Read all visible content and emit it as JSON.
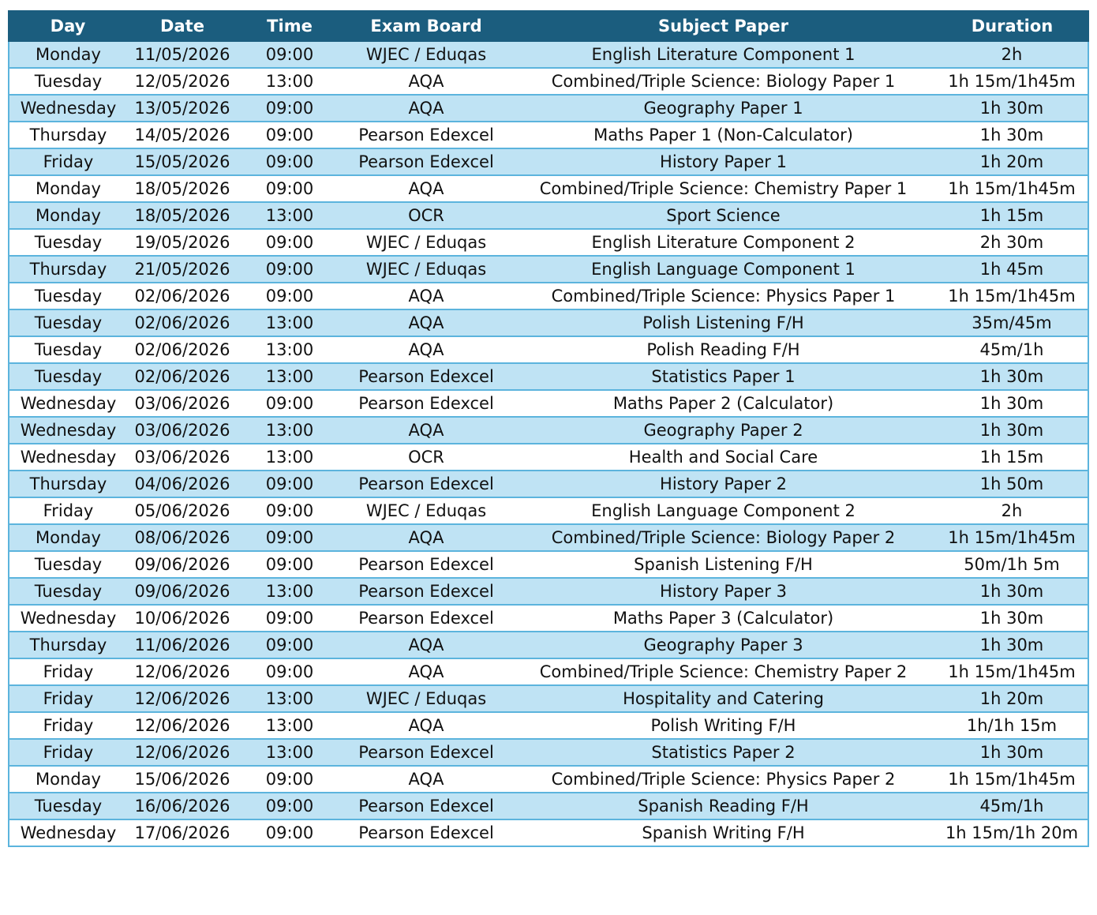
{
  "table": {
    "header": [
      "Day",
      "Date",
      "Time",
      "Exam Board",
      "Subject Paper",
      "Duration"
    ],
    "rows": [
      [
        "Monday",
        "11/05/2026",
        "09:00",
        "WJEC / Eduqas",
        "English Literature Component 1",
        "2h"
      ],
      [
        "Tuesday",
        "12/05/2026",
        "13:00",
        "AQA",
        "Combined/Triple Science: Biology Paper 1",
        "1h 15m/1h45m"
      ],
      [
        "Wednesday",
        "13/05/2026",
        "09:00",
        "AQA",
        "Geography Paper 1",
        "1h 30m"
      ],
      [
        "Thursday",
        "14/05/2026",
        "09:00",
        "Pearson Edexcel",
        "Maths Paper 1 (Non-Calculator)",
        "1h 30m"
      ],
      [
        "Friday",
        "15/05/2026",
        "09:00",
        "Pearson Edexcel",
        "History Paper 1",
        "1h 20m"
      ],
      [
        "Monday",
        "18/05/2026",
        "09:00",
        "AQA",
        "Combined/Triple Science: Chemistry Paper 1",
        "1h 15m/1h45m"
      ],
      [
        "Monday",
        "18/05/2026",
        "13:00",
        "OCR",
        "Sport Science",
        "1h 15m"
      ],
      [
        "Tuesday",
        "19/05/2026",
        "09:00",
        "WJEC / Eduqas",
        "English Literature Component 2",
        "2h 30m"
      ],
      [
        "Thursday",
        "21/05/2026",
        "09:00",
        "WJEC / Eduqas",
        "English Language Component 1",
        "1h 45m"
      ],
      [
        "Tuesday",
        "02/06/2026",
        "09:00",
        "AQA",
        "Combined/Triple Science: Physics Paper 1",
        "1h 15m/1h45m"
      ],
      [
        "Tuesday",
        "02/06/2026",
        "13:00",
        "AQA",
        "Polish Listening F/H",
        "35m/45m"
      ],
      [
        "Tuesday",
        "02/06/2026",
        "13:00",
        "AQA",
        "Polish Reading F/H",
        "45m/1h"
      ],
      [
        "Tuesday",
        "02/06/2026",
        "13:00",
        "Pearson Edexcel",
        "Statistics Paper 1",
        "1h 30m"
      ],
      [
        "Wednesday",
        "03/06/2026",
        "09:00",
        "Pearson Edexcel",
        "Maths Paper 2 (Calculator)",
        "1h 30m"
      ],
      [
        "Wednesday",
        "03/06/2026",
        "13:00",
        "AQA",
        "Geography Paper 2",
        "1h 30m"
      ],
      [
        "Wednesday",
        "03/06/2026",
        "13:00",
        "OCR",
        "Health and Social Care",
        "1h 15m"
      ],
      [
        "Thursday",
        "04/06/2026",
        "09:00",
        "Pearson Edexcel",
        "History Paper 2",
        "1h 50m"
      ],
      [
        "Friday",
        "05/06/2026",
        "09:00",
        "WJEC / Eduqas",
        "English Language Component 2",
        "2h"
      ],
      [
        "Monday",
        "08/06/2026",
        "09:00",
        "AQA",
        "Combined/Triple Science: Biology Paper 2",
        "1h 15m/1h45m"
      ],
      [
        "Tuesday",
        "09/06/2026",
        "09:00",
        "Pearson Edexcel",
        "Spanish Listening F/H",
        "50m/1h 5m"
      ],
      [
        "Tuesday",
        "09/06/2026",
        "13:00",
        "Pearson Edexcel",
        "History Paper 3",
        "1h 30m"
      ],
      [
        "Wednesday",
        "10/06/2026",
        "09:00",
        "Pearson Edexcel",
        "Maths Paper 3 (Calculator)",
        "1h 30m"
      ],
      [
        "Thursday",
        "11/06/2026",
        "09:00",
        "AQA",
        "Geography Paper 3",
        "1h 30m"
      ],
      [
        "Friday",
        "12/06/2026",
        "09:00",
        "AQA",
        "Combined/Triple Science: Chemistry Paper 2",
        "1h 15m/1h45m"
      ],
      [
        "Friday",
        "12/06/2026",
        "13:00",
        "WJEC / Eduqas",
        "Hospitality and Catering",
        "1h 20m"
      ],
      [
        "Friday",
        "12/06/2026",
        "13:00",
        "AQA",
        "Polish Writing F/H",
        "1h/1h 15m"
      ],
      [
        "Friday",
        "12/06/2026",
        "13:00",
        "Pearson Edexcel",
        "Statistics Paper 2",
        "1h 30m"
      ],
      [
        "Monday",
        "15/06/2026",
        "09:00",
        "AQA",
        "Combined/Triple Science: Physics Paper 2",
        "1h 15m/1h45m"
      ],
      [
        "Tuesday",
        "16/06/2026",
        "09:00",
        "Pearson Edexcel",
        "Spanish Reading F/H",
        "45m/1h"
      ],
      [
        "Wednesday",
        "17/06/2026",
        "09:00",
        "Pearson Edexcel",
        "Spanish Writing F/H",
        "1h 15m/1h 20m"
      ]
    ]
  }
}
